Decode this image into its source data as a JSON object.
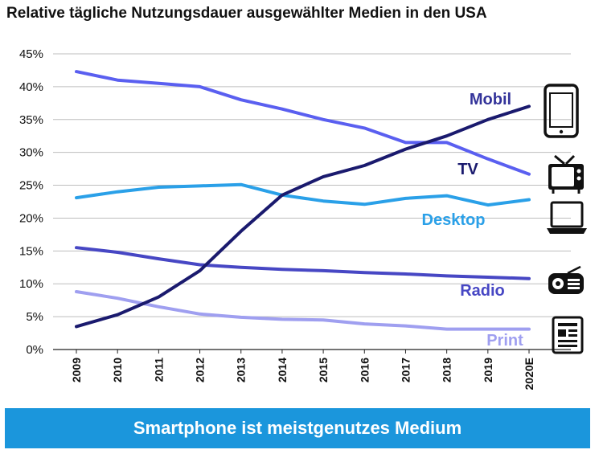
{
  "title": "Relative tägliche Nutzungsdauer ausgewählter Medien in den USA",
  "banner": "Smartphone ist meistgenutzes Medium",
  "chart_data": {
    "type": "line",
    "title": "Relative tägliche Nutzungsdauer ausgewählter Medien in den USA",
    "x": [
      "2009",
      "2010",
      "2011",
      "2012",
      "2013",
      "2014",
      "2015",
      "2016",
      "2017",
      "2018",
      "2019",
      "2020E"
    ],
    "ylim": [
      0,
      45
    ],
    "yticks": [
      "0%",
      "5%",
      "10%",
      "15%",
      "20%",
      "25%",
      "30%",
      "35%",
      "40%",
      "45%"
    ],
    "grid": true,
    "legend": "inline labels at right",
    "series": [
      {
        "name": "Mobil",
        "color": "#1a1a6e",
        "label_color": "#33339a",
        "icon": "smartphone-icon",
        "values": [
          3.5,
          5.3,
          8.0,
          12.0,
          18.0,
          23.5,
          26.3,
          28.0,
          30.5,
          32.5,
          35.0,
          37.0
        ]
      },
      {
        "name": "TV",
        "color": "#5a5ff0",
        "label_color": "#1a1a6e",
        "icon": "tv-icon",
        "values": [
          42.3,
          41.0,
          40.5,
          40.0,
          38.0,
          36.6,
          35.0,
          33.7,
          31.5,
          31.5,
          29.0,
          26.7
        ]
      },
      {
        "name": "Desktop",
        "color": "#2aa0e8",
        "label_color": "#2aa0e8",
        "icon": "laptop-icon",
        "values": [
          23.1,
          24.0,
          24.7,
          24.9,
          25.1,
          23.5,
          22.6,
          22.1,
          23.0,
          23.4,
          22.0,
          22.8
        ]
      },
      {
        "name": "Radio",
        "color": "#4747c4",
        "label_color": "#4747c4",
        "icon": "radio-icon",
        "values": [
          15.5,
          14.8,
          13.8,
          12.9,
          12.5,
          12.2,
          12.0,
          11.7,
          11.5,
          11.2,
          11.0,
          10.8
        ]
      },
      {
        "name": "Print",
        "color": "#9f9ff0",
        "label_color": "#9f9ff0",
        "icon": "newspaper-icon",
        "values": [
          8.8,
          7.8,
          6.5,
          5.4,
          4.9,
          4.6,
          4.5,
          3.9,
          3.6,
          3.1,
          3.1,
          3.1
        ]
      }
    ]
  }
}
